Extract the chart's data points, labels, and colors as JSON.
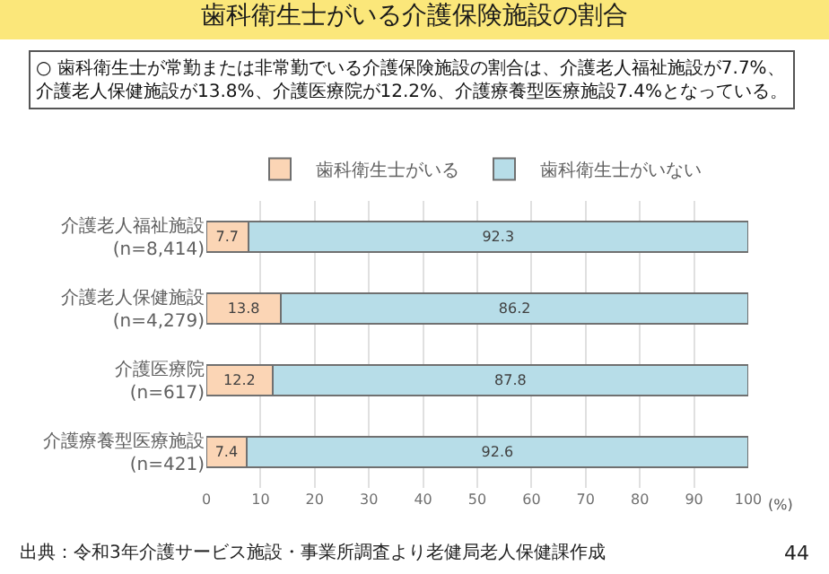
{
  "chart_data": {
    "type": "bar",
    "orientation": "horizontal",
    "stacked": true,
    "title": "歯科衛生士がいる介護保険施設の割合",
    "subtitle": "○ 歯科衛生士が常勤または非常勤でいる介護保険施設の割合は、介護老人福祉施設が7.7%、介護老人保健施設が13.8%、介護医療院が12.2%、介護療養型医療施設7.4%となっている。",
    "categories": [
      "介護老人福祉施設\n(n=8,414)",
      "介護老人保健施設\n(n=4,279)",
      "介護医療院\n(n=617)",
      "介護療養型医療施設\n(n=421)"
    ],
    "series": [
      {
        "name": "歯科衛生士がいる",
        "color": "#fbd5b5",
        "values": [
          7.7,
          13.8,
          12.2,
          7.4
        ]
      },
      {
        "name": "歯科衛生士がいない",
        "color": "#b7dde8",
        "values": [
          92.3,
          86.2,
          87.8,
          92.6
        ]
      }
    ],
    "xlabel": "(%)",
    "xlim": [
      0,
      100
    ],
    "xticks": [
      0,
      10,
      20,
      30,
      40,
      50,
      60,
      70,
      80,
      90,
      100
    ],
    "grid": "x",
    "legend": "top",
    "data_labels": true,
    "annotations": [
      "出典：令和3年介護サービス施設・事業所調査より老健局老人保健課作成",
      "44"
    ]
  }
}
